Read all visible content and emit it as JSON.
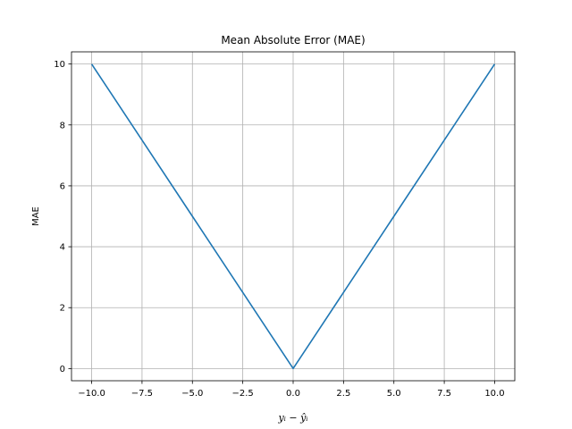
{
  "chart_data": {
    "type": "line",
    "title": "Mean Absolute Error (MAE)",
    "xlabel": "yᵢ − ŷᵢ",
    "ylabel": "MAE",
    "xlim": [
      -11,
      11
    ],
    "ylim": [
      -0.4,
      10.4
    ],
    "xticks": [
      -10.0,
      -7.5,
      -5.0,
      -2.5,
      0.0,
      2.5,
      5.0,
      7.5,
      10.0
    ],
    "xtick_labels": [
      "−10.0",
      "−7.5",
      "−5.0",
      "−2.5",
      "0.0",
      "2.5",
      "5.0",
      "7.5",
      "10.0"
    ],
    "yticks": [
      0,
      2,
      4,
      6,
      8,
      10
    ],
    "ytick_labels": [
      "0",
      "2",
      "4",
      "6",
      "8",
      "10"
    ],
    "grid": true,
    "series": [
      {
        "color": "#1f77b4",
        "x": [
          -10,
          -7.5,
          -5,
          -2.5,
          0,
          2.5,
          5,
          7.5,
          10
        ],
        "y": [
          10,
          7.5,
          5,
          2.5,
          0,
          2.5,
          5,
          7.5,
          10
        ]
      }
    ]
  }
}
